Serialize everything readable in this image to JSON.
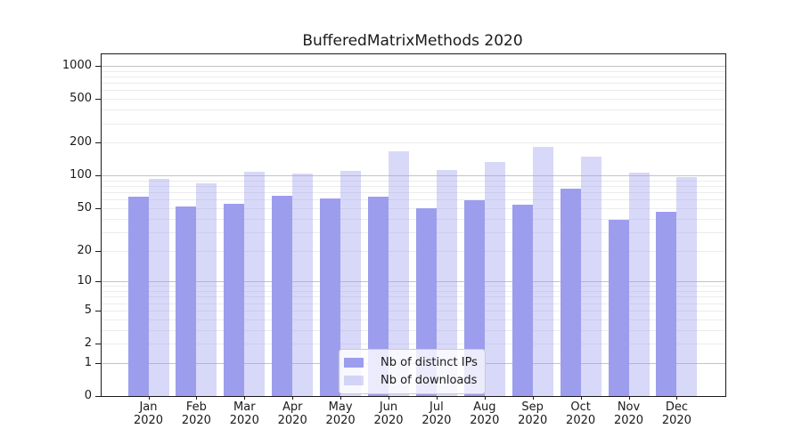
{
  "chart_data": {
    "type": "bar",
    "title": "BufferedMatrixMethods 2020",
    "categories": [
      "Jan 2020",
      "Feb 2020",
      "Mar 2020",
      "Apr 2020",
      "May 2020",
      "Jun 2020",
      "Jul 2020",
      "Aug 2020",
      "Sep 2020",
      "Oct 2020",
      "Nov 2020",
      "Dec 2020"
    ],
    "series": [
      {
        "name": "Nb of distinct IPs",
        "color": "#9d9dee",
        "opacity": 1,
        "values": [
          64,
          52,
          55,
          65,
          61,
          64,
          50,
          59,
          54,
          75,
          39,
          46
        ]
      },
      {
        "name": "Nb of downloads",
        "color": "#9d9dee",
        "opacity": 0.4,
        "values": [
          93,
          84,
          108,
          104,
          111,
          167,
          112,
          134,
          184,
          150,
          107,
          97
        ]
      }
    ],
    "yaxis": {
      "scale": "log1p",
      "tick_values": [
        0,
        1,
        2,
        5,
        10,
        20,
        50,
        100,
        200,
        500,
        1000
      ],
      "major_grid_values": [
        1,
        10,
        100,
        1000
      ],
      "minor_grid_values": [
        2,
        3,
        4,
        5,
        6,
        7,
        8,
        9,
        20,
        30,
        40,
        50,
        60,
        70,
        80,
        90,
        200,
        300,
        400,
        500,
        600,
        700,
        800,
        900
      ]
    },
    "legend": {
      "position": "lower center"
    },
    "grid": true,
    "colors": {
      "grid_major": "#c3c3c3",
      "grid_minor": "#ececec",
      "spine": "#1a1a1a",
      "background": "#ffffff",
      "legend_border": "#cccccc"
    }
  }
}
